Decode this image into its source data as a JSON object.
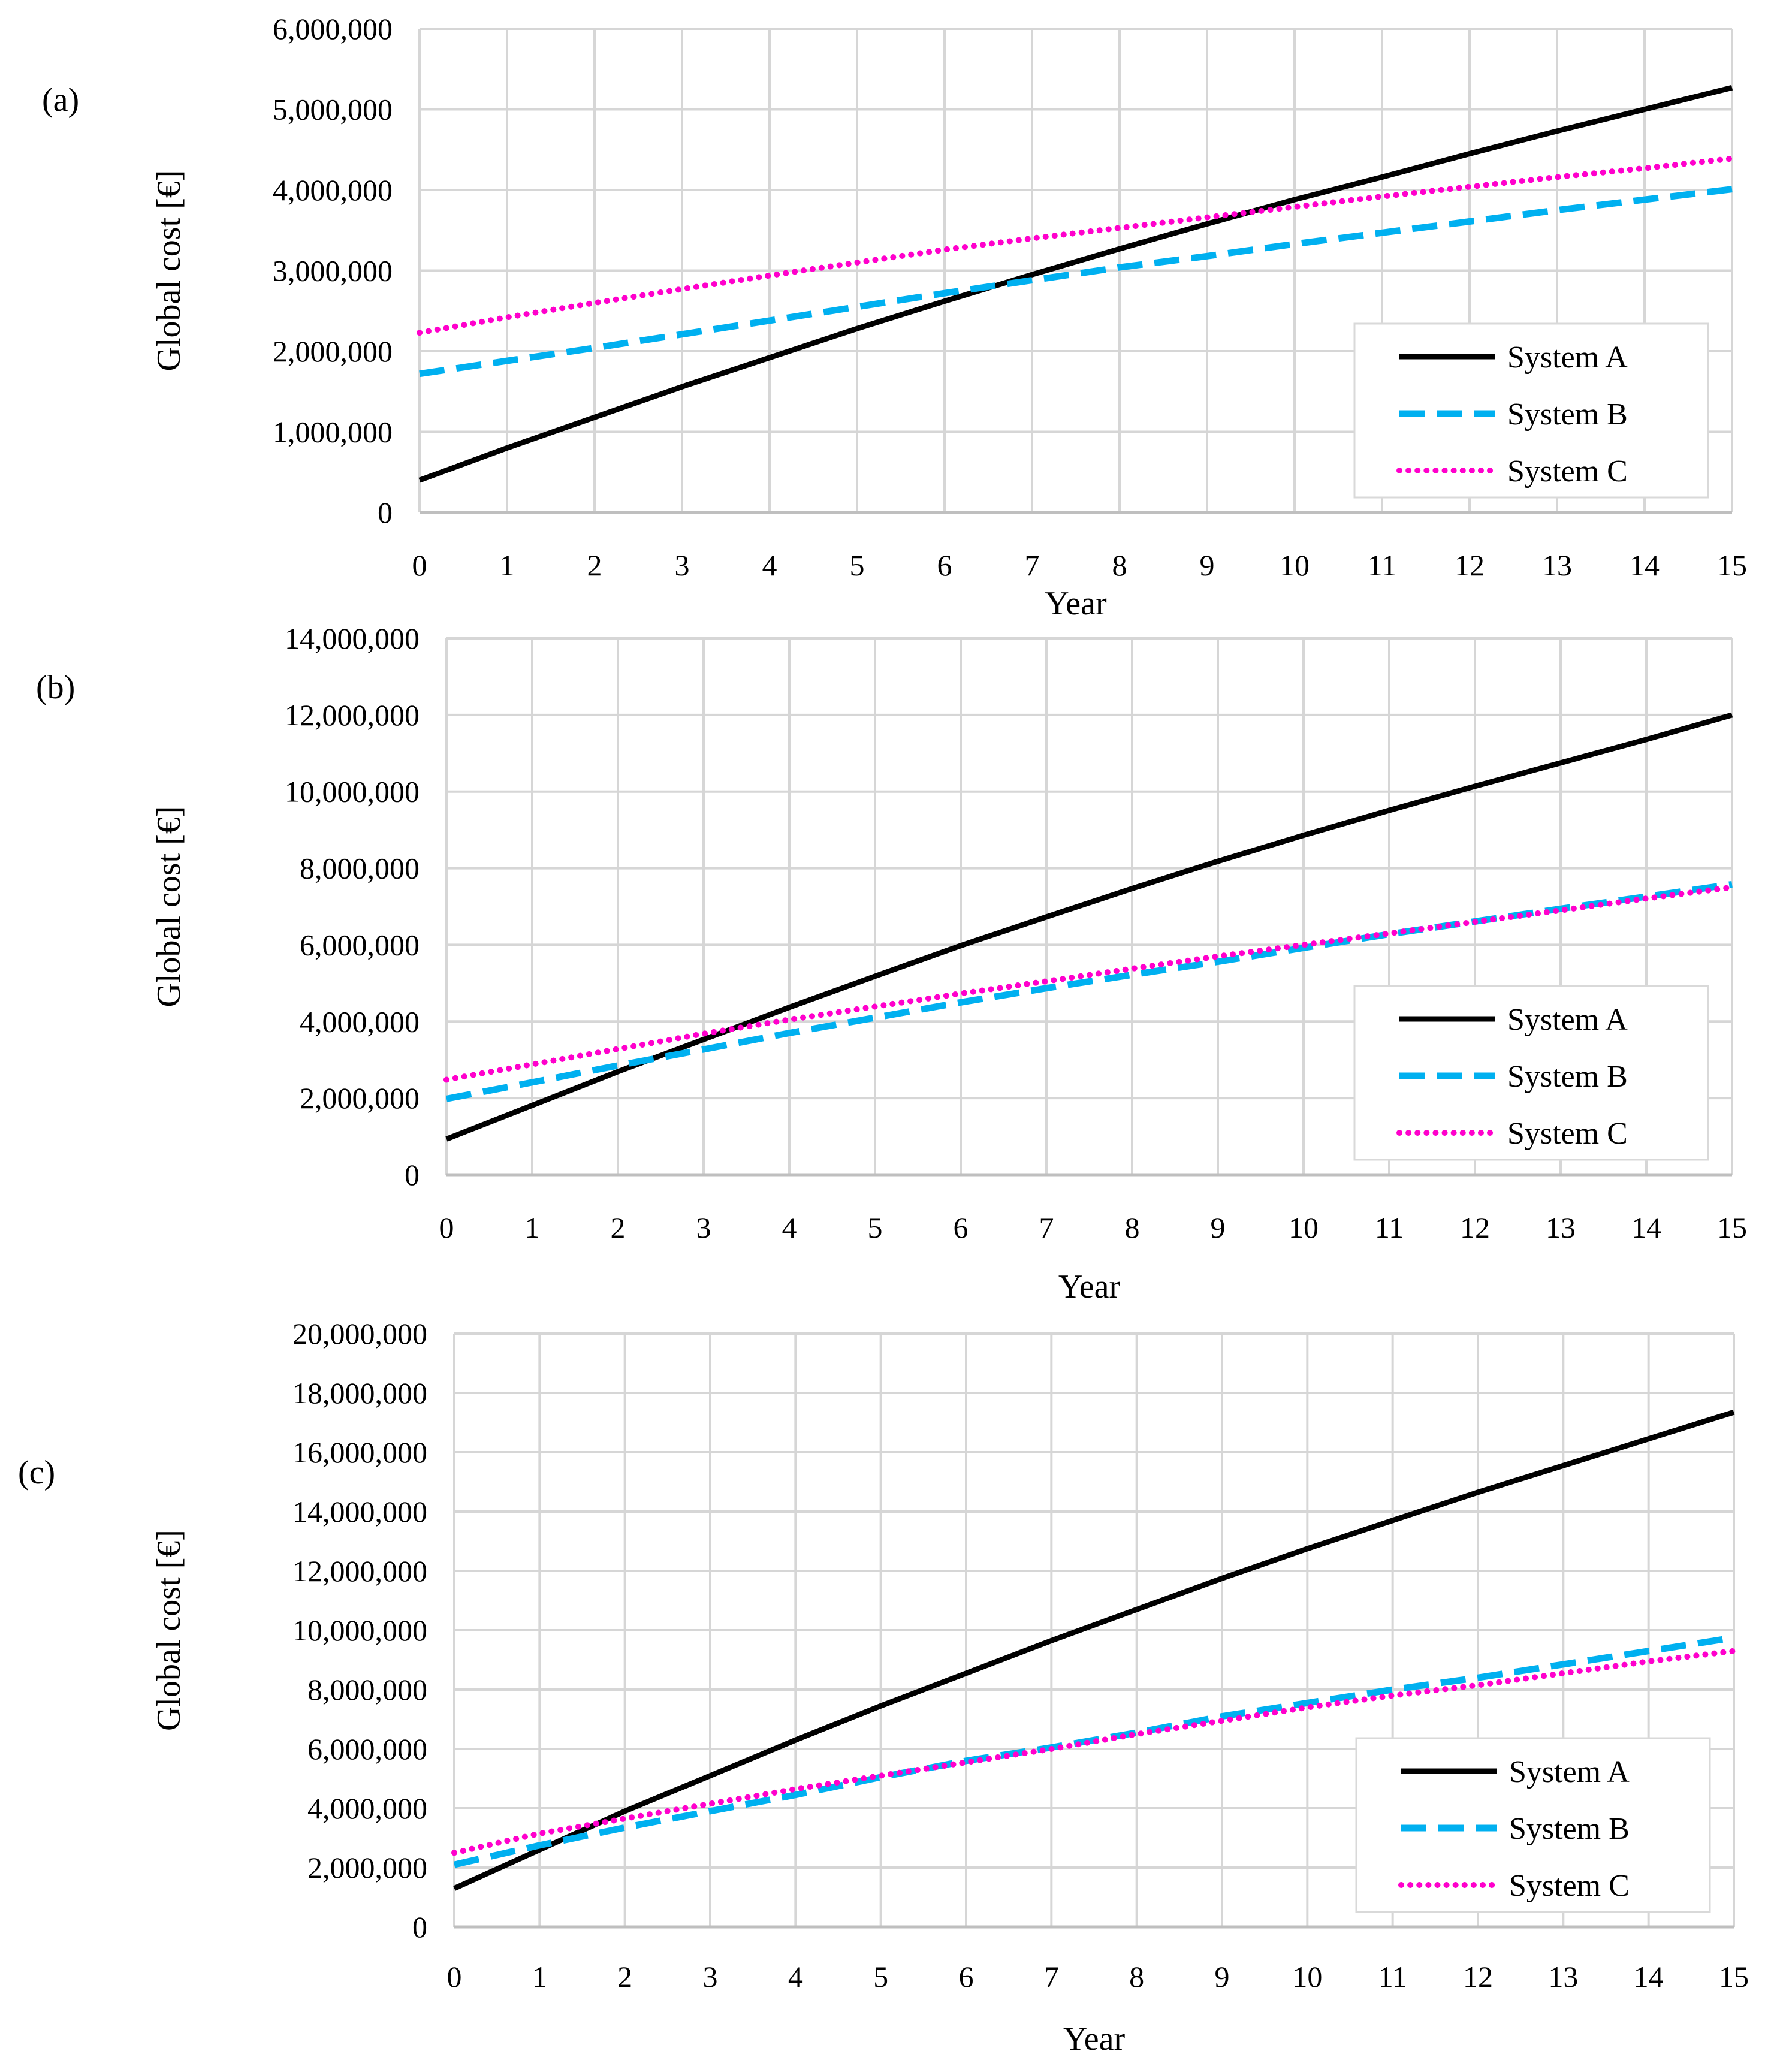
{
  "figure": {
    "series_colors": {
      "System A": "#000000",
      "System B": "#00b0f0",
      "System C": "#ff00cc"
    }
  },
  "chart_data": [
    {
      "panel": "(a)",
      "type": "line",
      "xlabel": "Year",
      "ylabel": "Global cost [€]",
      "x": [
        0,
        1,
        2,
        3,
        4,
        5,
        6,
        7,
        8,
        9,
        10,
        11,
        12,
        13,
        14,
        15
      ],
      "xticks": [
        "0",
        "1",
        "2",
        "3",
        "4",
        "5",
        "6",
        "7",
        "8",
        "9",
        "10",
        "11",
        "12",
        "13",
        "14",
        "15"
      ],
      "ylim": [
        0,
        6000000
      ],
      "yticks": [
        "0",
        "1,000,000",
        "2,000,000",
        "3,000,000",
        "4,000,000",
        "5,000,000",
        "6,000,000"
      ],
      "grid": true,
      "legend_position": "right-lower",
      "series": [
        {
          "name": "System A",
          "style": "solid",
          "values": [
            400000,
            800000,
            1180000,
            1560000,
            1920000,
            2280000,
            2620000,
            2950000,
            3270000,
            3580000,
            3880000,
            4160000,
            4450000,
            4730000,
            5000000,
            5270000
          ]
        },
        {
          "name": "System B",
          "style": "dashed",
          "values": [
            1720000,
            1880000,
            2040000,
            2210000,
            2380000,
            2550000,
            2720000,
            2880000,
            3040000,
            3180000,
            3330000,
            3470000,
            3610000,
            3750000,
            3880000,
            4010000
          ]
        },
        {
          "name": "System C",
          "style": "dotted",
          "values": [
            2230000,
            2420000,
            2600000,
            2770000,
            2940000,
            3100000,
            3260000,
            3400000,
            3530000,
            3660000,
            3790000,
            3920000,
            4040000,
            4160000,
            4270000,
            4390000
          ]
        }
      ]
    },
    {
      "panel": "(b)",
      "type": "line",
      "xlabel": "Year",
      "ylabel": "Global cost [€]",
      "x": [
        0,
        1,
        2,
        3,
        4,
        5,
        6,
        7,
        8,
        9,
        10,
        11,
        12,
        13,
        14,
        15
      ],
      "xticks": [
        "0",
        "1",
        "2",
        "3",
        "4",
        "5",
        "6",
        "7",
        "8",
        "9",
        "10",
        "11",
        "12",
        "13",
        "14",
        "15"
      ],
      "ylim": [
        0,
        14000000
      ],
      "yticks": [
        "0",
        "2,000,000",
        "4,000,000",
        "6,000,000",
        "8,000,000",
        "10,000,000",
        "12,000,000",
        "14,000,000"
      ],
      "grid": true,
      "legend_position": "right-lower",
      "series": [
        {
          "name": "System A",
          "style": "solid",
          "values": [
            930000,
            1810000,
            2690000,
            3530000,
            4370000,
            5180000,
            5980000,
            6730000,
            7470000,
            8180000,
            8860000,
            9510000,
            10140000,
            10750000,
            11360000,
            12000000
          ]
        },
        {
          "name": "System B",
          "style": "dashed",
          "values": [
            1980000,
            2410000,
            2850000,
            3270000,
            3700000,
            4100000,
            4500000,
            4870000,
            5220000,
            5560000,
            5920000,
            6280000,
            6610000,
            6940000,
            7260000,
            7580000
          ]
        },
        {
          "name": "System C",
          "style": "dotted",
          "values": [
            2480000,
            2880000,
            3280000,
            3680000,
            4050000,
            4390000,
            4730000,
            5050000,
            5380000,
            5700000,
            6000000,
            6300000,
            6600000,
            6900000,
            7210000,
            7500000
          ]
        }
      ]
    },
    {
      "panel": "(c)",
      "type": "line",
      "xlabel": "Year",
      "ylabel": "Global cost [€]",
      "x": [
        0,
        1,
        2,
        3,
        4,
        5,
        6,
        7,
        8,
        9,
        10,
        11,
        12,
        13,
        14,
        15
      ],
      "xticks": [
        "0",
        "1",
        "2",
        "3",
        "4",
        "5",
        "6",
        "7",
        "8",
        "9",
        "10",
        "11",
        "12",
        "13",
        "14",
        "15"
      ],
      "ylim": [
        0,
        20000000
      ],
      "yticks": [
        "0",
        "2,000,000",
        "4,000,000",
        "6,000,000",
        "8,000,000",
        "10,000,000",
        "12,000,000",
        "14,000,000",
        "16,000,000",
        "18,000,000",
        "20,000,000"
      ],
      "grid": true,
      "legend_position": "right-lower",
      "series": [
        {
          "name": "System A",
          "style": "solid",
          "values": [
            1300000,
            2600000,
            3900000,
            5100000,
            6300000,
            7450000,
            8550000,
            9650000,
            10700000,
            11750000,
            12750000,
            13700000,
            14650000,
            15550000,
            16450000,
            17350000
          ]
        },
        {
          "name": "System B",
          "style": "dashed",
          "values": [
            2100000,
            2750000,
            3350000,
            3900000,
            4450000,
            5050000,
            5600000,
            6050000,
            6550000,
            7100000,
            7550000,
            8000000,
            8400000,
            8850000,
            9300000,
            9750000
          ]
        },
        {
          "name": "System C",
          "style": "dotted",
          "values": [
            2500000,
            3150000,
            3650000,
            4150000,
            4650000,
            5100000,
            5550000,
            6000000,
            6500000,
            6950000,
            7400000,
            7800000,
            8150000,
            8550000,
            8950000,
            9300000
          ]
        }
      ]
    }
  ]
}
